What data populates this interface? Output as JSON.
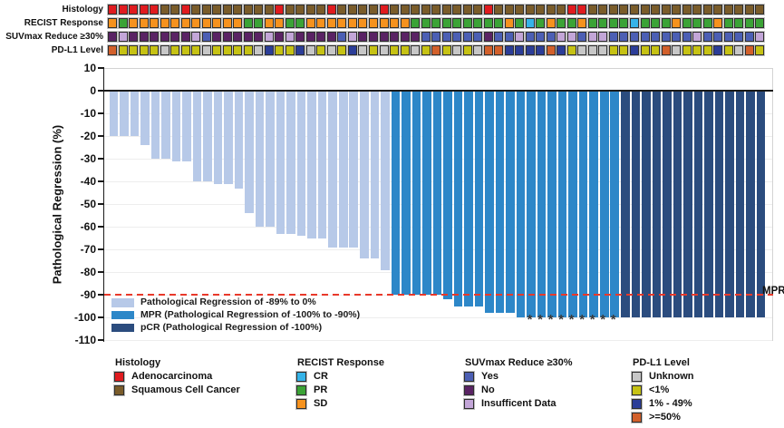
{
  "figure_title": "",
  "tracks": {
    "rows": [
      {
        "id": "histology",
        "label": "Histology",
        "codes": [
          "A",
          "A",
          "A",
          "A",
          "A",
          "S",
          "S",
          "A",
          "S",
          "S",
          "S",
          "S",
          "S",
          "S",
          "S",
          "S",
          "A",
          "S",
          "S",
          "S",
          "S",
          "A",
          "S",
          "S",
          "S",
          "S",
          "A",
          "S",
          "S",
          "S",
          "S",
          "S",
          "S",
          "S",
          "S",
          "S",
          "A",
          "S",
          "S",
          "S",
          "S",
          "S",
          "S",
          "S",
          "A",
          "A",
          "S",
          "S",
          "S",
          "S",
          "S",
          "S",
          "S",
          "S",
          "S",
          "S",
          "S",
          "S",
          "S",
          "S",
          "S",
          "S",
          "S"
        ]
      },
      {
        "id": "recist",
        "label": "RECIST Response",
        "codes": [
          "SD",
          "PR",
          "SD",
          "SD",
          "SD",
          "SD",
          "SD",
          "SD",
          "SD",
          "SD",
          "SD",
          "SD",
          "SD",
          "PR",
          "PR",
          "SD",
          "SD",
          "PR",
          "PR",
          "SD",
          "SD",
          "SD",
          "SD",
          "SD",
          "SD",
          "SD",
          "SD",
          "SD",
          "SD",
          "PR",
          "PR",
          "PR",
          "PR",
          "PR",
          "PR",
          "PR",
          "PR",
          "PR",
          "SD",
          "PR",
          "CR",
          "PR",
          "SD",
          "PR",
          "PR",
          "SD",
          "PR",
          "PR",
          "PR",
          "PR",
          "CR",
          "PR",
          "PR",
          "PR",
          "SD",
          "PR",
          "PR",
          "PR",
          "SD",
          "PR",
          "PR",
          "PR",
          "PR"
        ]
      },
      {
        "id": "suvmax",
        "label": "SUVmax Reduce ≥30%",
        "codes": [
          "N",
          "I",
          "N",
          "N",
          "N",
          "N",
          "N",
          "N",
          "I",
          "Y",
          "N",
          "N",
          "N",
          "N",
          "N",
          "I",
          "N",
          "I",
          "N",
          "N",
          "N",
          "N",
          "Y",
          "I",
          "N",
          "N",
          "N",
          "N",
          "N",
          "N",
          "Y",
          "Y",
          "Y",
          "Y",
          "Y",
          "Y",
          "N",
          "Y",
          "Y",
          "I",
          "Y",
          "Y",
          "Y",
          "I",
          "I",
          "Y",
          "I",
          "I",
          "Y",
          "Y",
          "Y",
          "Y",
          "Y",
          "Y",
          "Y",
          "Y",
          "I",
          "Y",
          "Y",
          "Y",
          "Y",
          "Y",
          "I"
        ]
      },
      {
        "id": "pdl1",
        "label": "PD-L1 Level",
        "codes": [
          "H",
          "L",
          "L",
          "L",
          "L",
          "U",
          "L",
          "L",
          "L",
          "U",
          "L",
          "L",
          "L",
          "L",
          "U",
          "M",
          "L",
          "L",
          "M",
          "U",
          "L",
          "U",
          "L",
          "M",
          "U",
          "L",
          "U",
          "L",
          "L",
          "U",
          "L",
          "H",
          "L",
          "U",
          "L",
          "U",
          "H",
          "H",
          "M",
          "M",
          "M",
          "M",
          "H",
          "M",
          "L",
          "U",
          "U",
          "U",
          "L",
          "L",
          "M",
          "L",
          "L",
          "H",
          "U",
          "L",
          "L",
          "L",
          "M",
          "L",
          "U",
          "H",
          "L"
        ]
      }
    ],
    "palettes": {
      "histology": {
        "A": "#e01b1f",
        "S": "#7a5c2a"
      },
      "recist": {
        "CR": "#35b3e8",
        "PR": "#3ba336",
        "SD": "#f6921e"
      },
      "suvmax": {
        "Y": "#4c5fb4",
        "N": "#5a2364",
        "I": "#c3a6d8"
      },
      "pdl1": {
        "U": "#c7c7c7",
        "L": "#c6c214",
        "M": "#2b3d98",
        "H": "#d2602b"
      }
    }
  },
  "chart_data": {
    "type": "bar",
    "title": "",
    "xlabel": "",
    "ylabel": "Pathological Regression (%)",
    "ylim": [
      -110,
      10
    ],
    "yticks": [
      10,
      0,
      -10,
      -20,
      -30,
      -40,
      -50,
      -60,
      -70,
      -80,
      -90,
      -100,
      -110
    ],
    "grid": true,
    "x": [
      1,
      2,
      3,
      4,
      5,
      6,
      7,
      8,
      9,
      10,
      11,
      12,
      13,
      14,
      15,
      16,
      17,
      18,
      19,
      20,
      21,
      22,
      23,
      24,
      25,
      26,
      27,
      28,
      29,
      30,
      31,
      32,
      33,
      34,
      35,
      36,
      37,
      38,
      39,
      40,
      41,
      42,
      43,
      44,
      45,
      46,
      47,
      48,
      49,
      50,
      51,
      52,
      53,
      54,
      55,
      56,
      57,
      58,
      59,
      60,
      61,
      62,
      63
    ],
    "values": [
      -20,
      -20,
      -20,
      -24,
      -30,
      -30,
      -31,
      -31,
      -40,
      -40,
      -41,
      -41,
      -43,
      -54,
      -60,
      -60,
      -63,
      -63,
      -64,
      -65,
      -65,
      -69,
      -69,
      -69,
      -74,
      -74,
      -79,
      -90,
      -90,
      -90,
      -90,
      -90,
      -92,
      -95,
      -95,
      -95,
      -98,
      -98,
      -98,
      -100,
      -100,
      -100,
      -100,
      -100,
      -100,
      -100,
      -100,
      -100,
      -100,
      -100,
      -100,
      -100,
      -100,
      -100,
      -100,
      -100,
      -100,
      -100,
      -100,
      -100,
      -100,
      -100,
      -100
    ],
    "bar_category": [
      "light",
      "light",
      "light",
      "light",
      "light",
      "light",
      "light",
      "light",
      "light",
      "light",
      "light",
      "light",
      "light",
      "light",
      "light",
      "light",
      "light",
      "light",
      "light",
      "light",
      "light",
      "light",
      "light",
      "light",
      "light",
      "light",
      "light",
      "mpr",
      "mpr",
      "mpr",
      "mpr",
      "mpr",
      "mpr",
      "mpr",
      "mpr",
      "mpr",
      "mpr",
      "mpr",
      "mpr",
      "mpr",
      "mpr",
      "mpr",
      "mpr",
      "mpr",
      "mpr",
      "mpr",
      "mpr",
      "mpr",
      "mpr",
      "pcr",
      "pcr",
      "pcr",
      "pcr",
      "pcr",
      "pcr",
      "pcr",
      "pcr",
      "pcr",
      "pcr",
      "pcr",
      "pcr",
      "pcr",
      "pcr"
    ],
    "asterisk_bars": [
      41,
      42,
      43,
      44,
      45,
      46,
      47,
      48,
      49
    ],
    "threshold": {
      "value": -90,
      "label": "MPR",
      "color": "#e8392a",
      "style": "dashed"
    },
    "colors": {
      "light": "#b7c9e8",
      "mpr": "#2d87c8",
      "pcr": "#2b4c7e",
      "zero_line": "#1a1a1a"
    }
  },
  "plot_legend": [
    {
      "key": "light",
      "label": "Pathological Regression of -89% to 0%",
      "color": "#b7c9e8"
    },
    {
      "key": "mpr",
      "label": "MPR (Pathological Regression of -100% to -90%)",
      "color": "#2d87c8"
    },
    {
      "key": "pcr",
      "label": "pCR (Pathological Regression of -100%)",
      "color": "#2b4c7e"
    }
  ],
  "bottom_legends": [
    {
      "title": "Histology",
      "items": [
        {
          "label": "Adenocarcinoma",
          "color": "#e01b1f"
        },
        {
          "label": "Squamous Cell Cancer",
          "color": "#7a5c2a"
        }
      ]
    },
    {
      "title": "RECIST Response",
      "items": [
        {
          "label": "CR",
          "color": "#35b3e8"
        },
        {
          "label": "PR",
          "color": "#3ba336"
        },
        {
          "label": "SD",
          "color": "#f6921e"
        }
      ]
    },
    {
      "title": "SUVmax Reduce ≥30%",
      "items": [
        {
          "label": "Yes",
          "color": "#4c5fb4"
        },
        {
          "label": "No",
          "color": "#5a2364"
        },
        {
          "label": "Insufficent Data",
          "color": "#c3a6d8"
        }
      ]
    },
    {
      "title": "PD-L1 Level",
      "items": [
        {
          "label": "Unknown",
          "color": "#c7c7c7"
        },
        {
          "label": "<1%",
          "color": "#c6c214"
        },
        {
          "label": "1% - 49%",
          "color": "#2b3d98"
        },
        {
          "label": ">=50%",
          "color": "#d2602b"
        }
      ]
    }
  ]
}
